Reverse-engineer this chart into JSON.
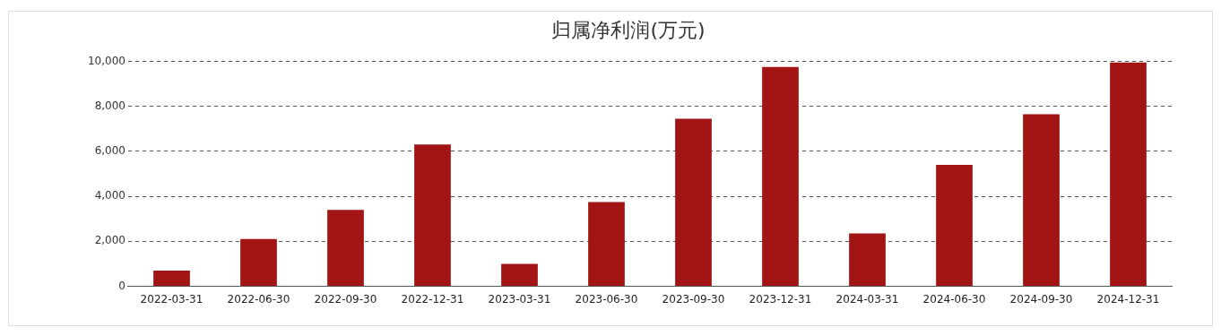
{
  "chart_data": {
    "type": "bar",
    "title": "归属净利润(万元)",
    "categories": [
      "2022-03-31",
      "2022-06-30",
      "2022-09-30",
      "2022-12-31",
      "2023-03-31",
      "2023-06-30",
      "2023-09-30",
      "2023-12-31",
      "2024-03-31",
      "2024-06-30",
      "2024-09-30",
      "2024-12-31"
    ],
    "values": [
      700,
      2100,
      3400,
      6300,
      1000,
      3750,
      7450,
      9750,
      2350,
      5400,
      7650,
      9950
    ],
    "color": "#a31515",
    "ylim": [
      0,
      10000
    ],
    "yticks": [
      0,
      {
        "value": 2000,
        "label": "2,000"
      },
      {
        "value": 4000,
        "label": "4,000"
      },
      {
        "value": 6000,
        "label": "6,000"
      },
      {
        "value": 8000,
        "label": "8,000"
      },
      {
        "value": 10000,
        "label": "10,000"
      }
    ],
    "grid": "y",
    "legend": false
  }
}
